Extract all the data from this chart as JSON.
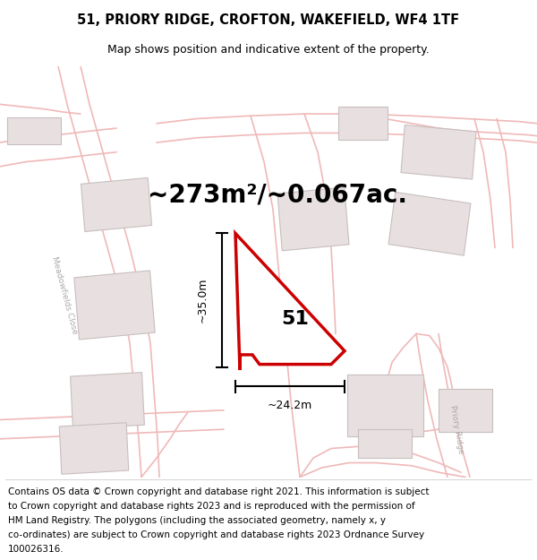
{
  "title_line1": "51, PRIORY RIDGE, CROFTON, WAKEFIELD, WF4 1TF",
  "title_line2": "Map shows position and indicative extent of the property.",
  "area_text": "~273m²/~0.067ac.",
  "label_51": "51",
  "dim_vertical": "~35.0m",
  "dim_horizontal": "~24.2m",
  "footer_lines": [
    "Contains OS data © Crown copyright and database right 2021. This information is subject",
    "to Crown copyright and database rights 2023 and is reproduced with the permission of",
    "HM Land Registry. The polygons (including the associated geometry, namely x, y",
    "co-ordinates) are subject to Crown copyright and database rights 2023 Ordnance Survey",
    "100026316."
  ],
  "map_bg": "#faf7f7",
  "road_color": "#f0b8b8",
  "road_outline_color": "#e8a0a0",
  "building_color": "#e8e0e0",
  "building_edge": "#c8bebe",
  "plot_fill": "#ffffff",
  "plot_edge": "#cc0000",
  "dim_color": "#000000",
  "road_label_color": "#aaaaaa",
  "title_fontsize": 10.5,
  "subtitle_fontsize": 9,
  "area_fontsize": 20,
  "label_fontsize": 16,
  "dim_fontsize": 9,
  "footer_fontsize": 7.5,
  "road_lw": 1.2,
  "plot_lw": 2.5
}
